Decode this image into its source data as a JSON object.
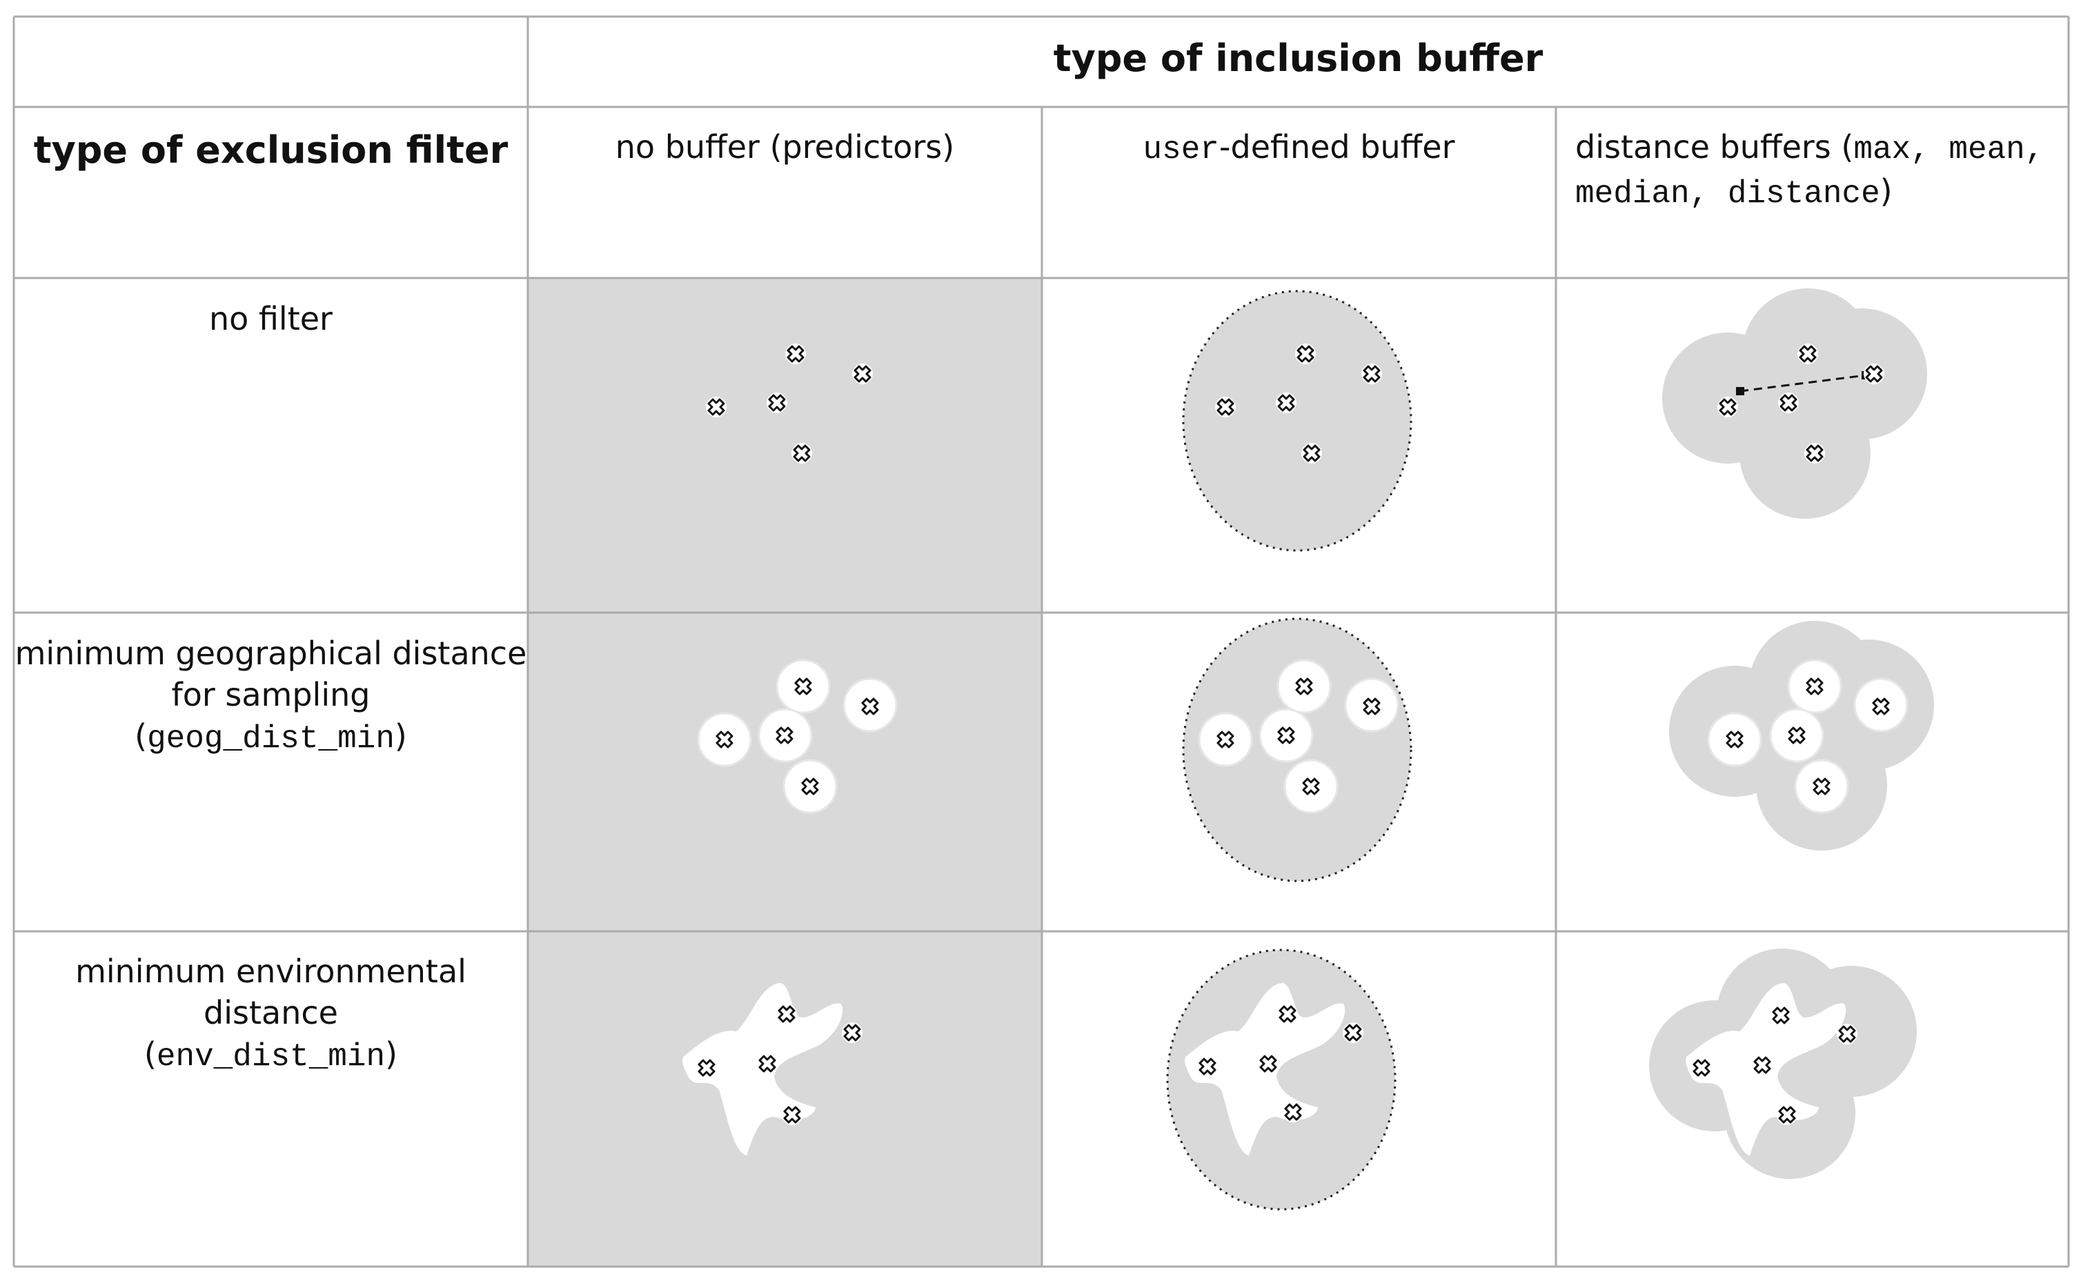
{
  "column_header": {
    "title": "type of inclusion buffer",
    "col1": "no buffer (predictors)",
    "col2_code": "user",
    "col2_rest": "-defined buffer",
    "col3_pre": "distance buffers (",
    "col3_code1": "max, mean,",
    "col3_code2": "median, distance",
    "col3_post": ")"
  },
  "row_header": {
    "title": "type of exclusion filter"
  },
  "rows": [
    {
      "line1": "no filter"
    },
    {
      "line1": "minimum geographical distance",
      "line2": "for sampling",
      "code": "geog_dist_min"
    },
    {
      "line1": "minimum environmental",
      "line2": "distance",
      "code": "env_dist_min"
    }
  ],
  "colors": {
    "shade": "#d9d9d9",
    "grid": "#ababab",
    "marker": "#111111"
  }
}
